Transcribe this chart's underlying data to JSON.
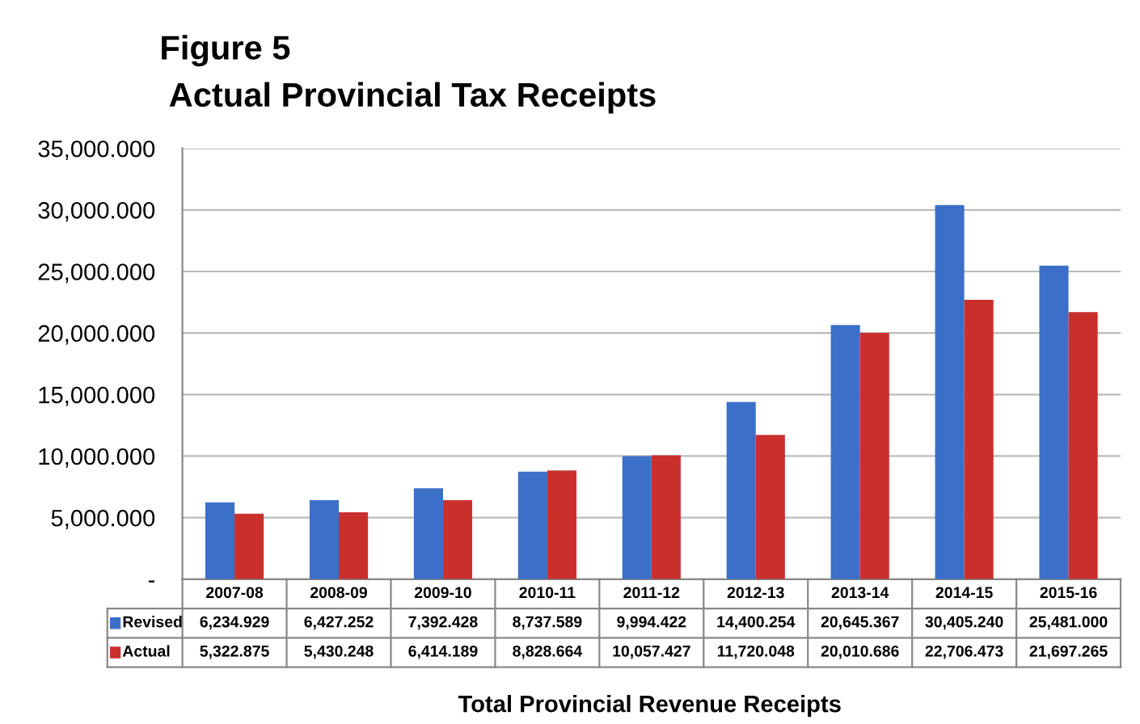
{
  "chart_data": {
    "type": "bar",
    "title": "Figure 5",
    "subtitle": "Actual Provincial Tax Receipts",
    "xlabel": "Total Provincial Revenue Receipts",
    "categories": [
      "2007-08",
      "2008-09",
      "2009-10",
      "2010-11",
      "2011-12",
      "2012-13",
      "2013-14",
      "2014-15",
      "2015-16"
    ],
    "series": [
      {
        "name": "Revised",
        "color": "#3b6fc8",
        "values": [
          6234.929,
          6427.252,
          7392.428,
          8737.589,
          9994.422,
          14400.254,
          20645.367,
          30405.24,
          25481.0
        ],
        "value_labels": [
          "6,234.929",
          "6,427.252",
          "7,392.428",
          "8,737.589",
          "9,994.422",
          "14,400.254",
          "20,645.367",
          "30,405.240",
          "25,481.000"
        ]
      },
      {
        "name": "Actual",
        "color": "#c9302c",
        "values": [
          5322.875,
          5430.248,
          6414.189,
          8828.664,
          10057.427,
          11720.048,
          20010.686,
          22706.473,
          21697.265
        ],
        "value_labels": [
          "5,322.875",
          "5,430.248",
          "6,414.189",
          "8,828.664",
          "10,057.427",
          "11,720.048",
          "20,010.686",
          "22,706.473",
          "21,697.265"
        ]
      }
    ],
    "ylim": [
      0,
      35000
    ],
    "yticks": [
      {
        "value": 0,
        "label": "-"
      },
      {
        "value": 5000,
        "label": "5,000.000"
      },
      {
        "value": 10000,
        "label": "10,000.000"
      },
      {
        "value": 15000,
        "label": "15,000.000"
      },
      {
        "value": 20000,
        "label": "20,000.000"
      },
      {
        "value": 25000,
        "label": "25,000.000"
      },
      {
        "value": 30000,
        "label": "30,000.000"
      },
      {
        "value": 35000,
        "label": "35,000.000"
      }
    ],
    "grid": "y",
    "legend": "bottom"
  }
}
